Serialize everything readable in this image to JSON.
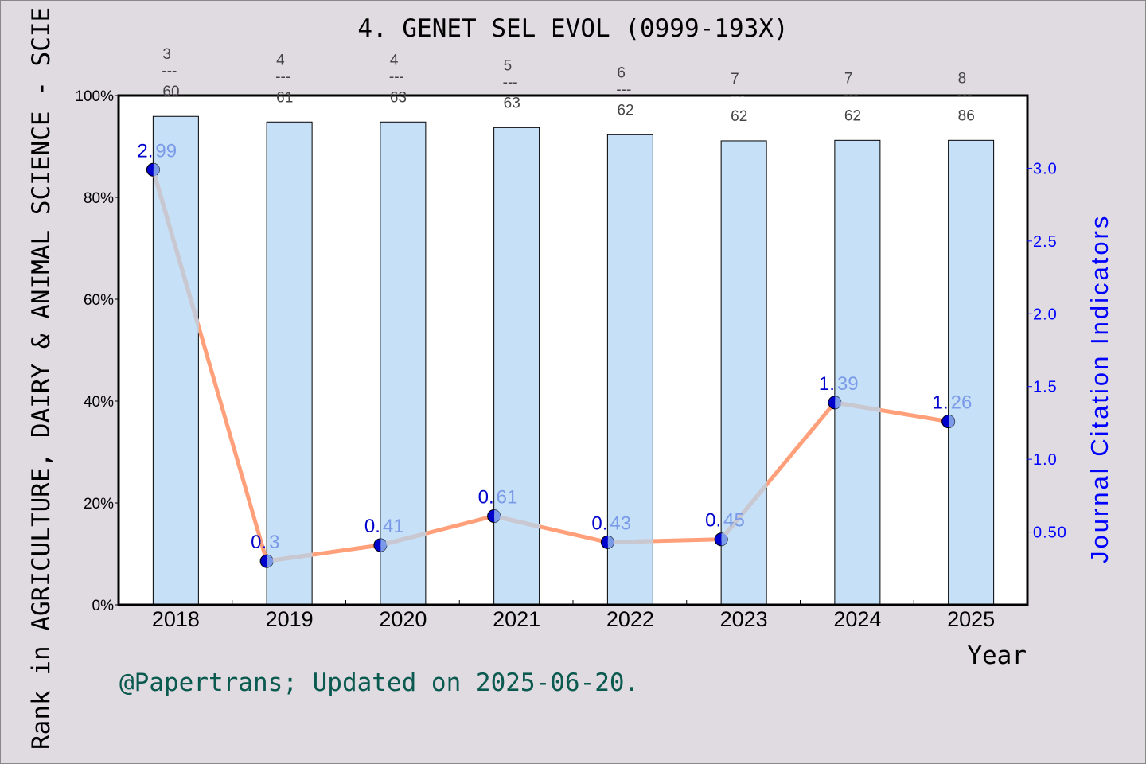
{
  "chart_data": {
    "type": "bar+line",
    "title": "4. GENET SEL EVOL (0999-193X)",
    "xlabel": "Year",
    "ylabel_left": "Rank in AGRICULTURE, DAIRY & ANIMAL SCIENCE - SCIE",
    "ylabel_right": "Journal Citation Indicators",
    "categories": [
      "2018",
      "2019",
      "2020",
      "2021",
      "2022",
      "2023",
      "2024",
      "2025"
    ],
    "left_axis": {
      "ylim": [
        0,
        100
      ],
      "ticks": [
        "0%",
        "20%",
        "40%",
        "60%",
        "80%",
        "100%"
      ],
      "tick_values": [
        0,
        20,
        40,
        60,
        80,
        100
      ]
    },
    "right_axis": {
      "ylim": [
        0,
        3.5
      ],
      "ticks": [
        "0.50",
        "1.0",
        "1.5",
        "2.0",
        "2.5",
        "3.0"
      ],
      "tick_values": [
        0.5,
        1.0,
        1.5,
        2.0,
        2.5,
        3.0
      ]
    },
    "bars": {
      "values_percent": [
        95.9,
        94.8,
        94.8,
        93.7,
        92.3,
        91.1,
        91.2,
        91.2
      ],
      "rank_labels": [
        {
          "rank": "3",
          "sep": "---",
          "total": "60"
        },
        {
          "rank": "4",
          "sep": "---",
          "total": "61"
        },
        {
          "rank": "4",
          "sep": "---",
          "total": "63"
        },
        {
          "rank": "5",
          "sep": "---",
          "total": "63"
        },
        {
          "rank": "6",
          "sep": "---",
          "total": "62"
        },
        {
          "rank": "7",
          "sep": "---",
          "total": "62"
        },
        {
          "rank": "7",
          "sep": "---",
          "total": "62"
        },
        {
          "rank": "8",
          "sep": "---",
          "total": "86"
        }
      ]
    },
    "line": {
      "values": [
        2.99,
        0.3,
        0.41,
        0.61,
        0.43,
        0.45,
        1.39,
        1.26
      ],
      "labels": [
        {
          "int": "2.",
          "frac": "99"
        },
        {
          "int": "0.",
          "frac": "3"
        },
        {
          "int": "0.",
          "frac": "41"
        },
        {
          "int": "0.",
          "frac": "61"
        },
        {
          "int": "0.",
          "frac": "43"
        },
        {
          "int": "0.",
          "frac": "45"
        },
        {
          "int": "1.",
          "frac": "39"
        },
        {
          "int": "1.",
          "frac": "26"
        }
      ]
    },
    "grid": false,
    "colors": {
      "background": "#dfdbe1",
      "bar": "#c5e0f7",
      "line": "#ffa07a",
      "line_over_bar": "#c8c8d2",
      "marker": "#0000cd",
      "marker_over_bar": "#7b9be8",
      "right_axis": "#0000ff",
      "footer": "#0b5a50"
    }
  },
  "footer": "@Papertrans; Updated on 2025-06-20."
}
